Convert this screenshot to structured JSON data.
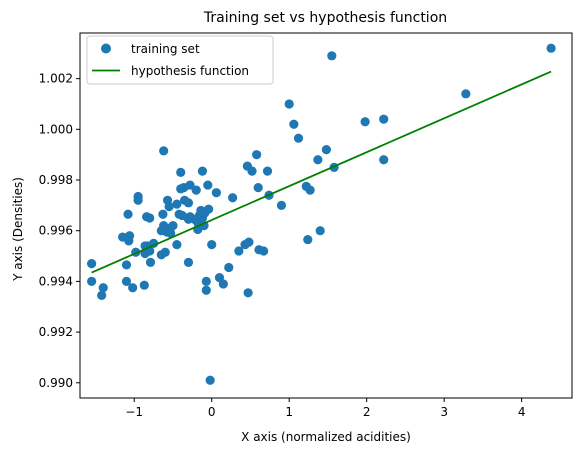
{
  "chart_data": {
    "type": "scatter",
    "title": "Training set vs hypothesis function",
    "xlabel": "X axis (normalized acidities)",
    "ylabel": "Y axis (Densities)",
    "xlim": [
      -1.7,
      4.65
    ],
    "ylim": [
      0.9894,
      1.0038
    ],
    "xticks": [
      -1,
      0,
      1,
      2,
      3,
      4
    ],
    "yticks": [
      0.99,
      0.992,
      0.994,
      0.996,
      0.998,
      1.0,
      1.002
    ],
    "xtick_labels": [
      "−1",
      "0",
      "1",
      "2",
      "3",
      "4"
    ],
    "ytick_labels": [
      "0.990",
      "0.992",
      "0.994",
      "0.996",
      "0.998",
      "1.000",
      "1.002"
    ],
    "grid": false,
    "legend_position": "upper-left",
    "series": [
      {
        "name": "training set",
        "kind": "scatter",
        "color": "#1f77b4",
        "points": [
          [
            4.38,
            1.0032
          ],
          [
            1.55,
            1.0029
          ],
          [
            3.28,
            1.0014
          ],
          [
            1.0,
            1.001
          ],
          [
            1.06,
            1.0002
          ],
          [
            1.98,
            1.0003
          ],
          [
            2.22,
            1.0004
          ],
          [
            1.12,
            0.99965
          ],
          [
            1.48,
            0.9992
          ],
          [
            1.37,
            0.9988
          ],
          [
            2.22,
            0.9988
          ],
          [
            1.58,
            0.9985
          ],
          [
            -0.62,
            0.99915
          ],
          [
            0.58,
            0.999
          ],
          [
            0.46,
            0.99855
          ],
          [
            0.52,
            0.99835
          ],
          [
            0.72,
            0.99835
          ],
          [
            -0.12,
            0.99835
          ],
          [
            0.6,
            0.9977
          ],
          [
            -0.4,
            0.9983
          ],
          [
            -0.36,
            0.9977
          ],
          [
            -0.2,
            0.9976
          ],
          [
            -0.05,
            0.9978
          ],
          [
            0.06,
            0.9975
          ],
          [
            0.74,
            0.9974
          ],
          [
            1.22,
            0.99775
          ],
          [
            1.27,
            0.9976
          ],
          [
            0.9,
            0.997
          ],
          [
            -0.28,
            0.9978
          ],
          [
            -0.4,
            0.99765
          ],
          [
            -0.45,
            0.99705
          ],
          [
            -0.55,
            0.99695
          ],
          [
            -0.35,
            0.9972
          ],
          [
            -0.3,
            0.9971
          ],
          [
            -0.57,
            0.9972
          ],
          [
            -0.95,
            0.99735
          ],
          [
            -0.95,
            0.9972
          ],
          [
            -1.08,
            0.99665
          ],
          [
            -0.84,
            0.99655
          ],
          [
            -0.8,
            0.9965
          ],
          [
            -0.63,
            0.99665
          ],
          [
            -0.42,
            0.99665
          ],
          [
            -0.38,
            0.9966
          ],
          [
            -0.28,
            0.99655
          ],
          [
            -0.22,
            0.99645
          ],
          [
            -0.16,
            0.9966
          ],
          [
            -0.12,
            0.9965
          ],
          [
            -0.09,
            0.9967
          ],
          [
            -0.04,
            0.99685
          ],
          [
            -0.14,
            0.9968
          ],
          [
            -0.3,
            0.99645
          ],
          [
            -0.2,
            0.9964
          ],
          [
            -0.17,
            0.99625
          ],
          [
            -0.5,
            0.9962
          ],
          [
            -0.54,
            0.9961
          ],
          [
            -0.62,
            0.9962
          ],
          [
            -0.65,
            0.996
          ],
          [
            -0.58,
            0.99595
          ],
          [
            -0.6,
            0.99605
          ],
          [
            -0.53,
            0.9959
          ],
          [
            -0.18,
            0.99605
          ],
          [
            -0.1,
            0.9962
          ],
          [
            0.27,
            0.9973
          ],
          [
            1.4,
            0.996
          ],
          [
            1.24,
            0.99565
          ],
          [
            -1.15,
            0.99575
          ],
          [
            -1.06,
            0.9958
          ],
          [
            -0.86,
            0.9954
          ],
          [
            -0.75,
            0.9955
          ],
          [
            -0.98,
            0.99515
          ],
          [
            -1.07,
            0.9956
          ],
          [
            -0.45,
            0.99545
          ],
          [
            0.0,
            0.99545
          ],
          [
            0.43,
            0.99545
          ],
          [
            0.48,
            0.99555
          ],
          [
            0.35,
            0.9952
          ],
          [
            0.61,
            0.99525
          ],
          [
            0.67,
            0.9952
          ],
          [
            -0.65,
            0.99505
          ],
          [
            -0.6,
            0.99515
          ],
          [
            -0.86,
            0.9951
          ],
          [
            -0.8,
            0.9952
          ],
          [
            -0.83,
            0.9954
          ],
          [
            -1.55,
            0.9947
          ],
          [
            -1.1,
            0.99465
          ],
          [
            -0.79,
            0.99475
          ],
          [
            -0.3,
            0.99475
          ],
          [
            0.22,
            0.99455
          ],
          [
            -1.55,
            0.994
          ],
          [
            -1.1,
            0.994
          ],
          [
            0.1,
            0.99415
          ],
          [
            0.15,
            0.9939
          ],
          [
            -0.07,
            0.994
          ],
          [
            -0.87,
            0.99385
          ],
          [
            -1.4,
            0.99375
          ],
          [
            -1.02,
            0.99375
          ],
          [
            -0.07,
            0.99365
          ],
          [
            0.47,
            0.99355
          ],
          [
            -1.42,
            0.99345
          ],
          [
            -0.02,
            0.9901
          ]
        ]
      },
      {
        "name": "hypothesis function",
        "kind": "line",
        "color": "#008000",
        "points": [
          [
            -1.55,
            0.99435
          ],
          [
            4.38,
            1.00228
          ]
        ]
      }
    ]
  }
}
